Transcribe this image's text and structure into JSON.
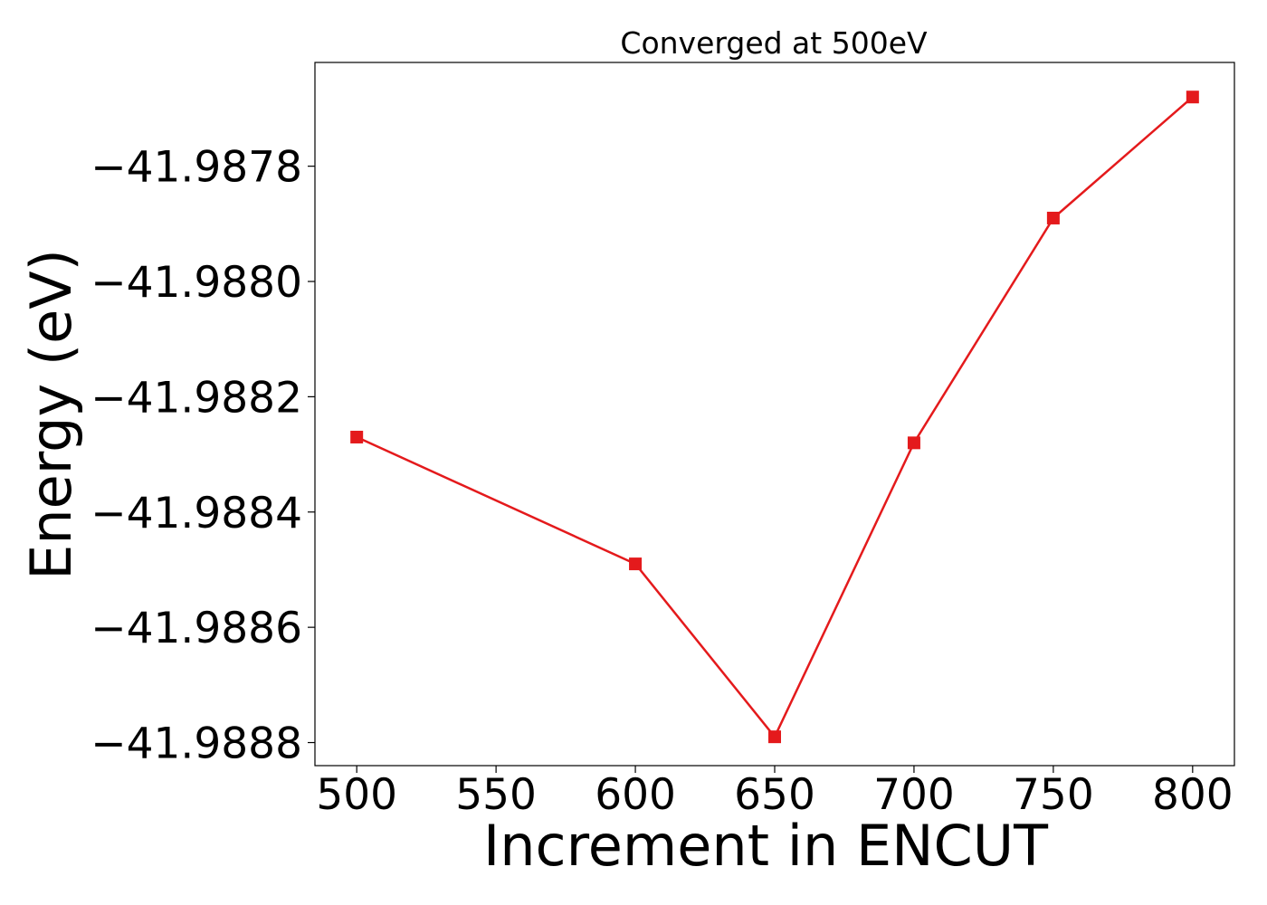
{
  "chart_data": {
    "type": "line",
    "title": "Converged at 500eV",
    "xlabel": "Increment in ENCUT",
    "ylabel": "Energy (eV)",
    "x": [
      500,
      600,
      650,
      700,
      750,
      800
    ],
    "series": [
      {
        "values": [
          -41.98827,
          -41.98849,
          -41.98879,
          -41.98828,
          -41.98789,
          -41.98768
        ],
        "color": "#e41a1c",
        "marker": "square"
      }
    ],
    "xlim": [
      485,
      815
    ],
    "ylim": [
      -41.98884,
      -41.98762
    ],
    "xticks": [
      500,
      550,
      600,
      650,
      700,
      750,
      800
    ],
    "xtick_labels": [
      "500",
      "550",
      "600",
      "650",
      "700",
      "750",
      "800"
    ],
    "yticks": [
      -41.9878,
      -41.988,
      -41.9882,
      -41.9884,
      -41.9886,
      -41.9888
    ],
    "ytick_labels": [
      "−41.9878",
      "−41.9880",
      "−41.9882",
      "−41.9884",
      "−41.9886",
      "−41.9888"
    ],
    "grid": false,
    "legend": false
  }
}
